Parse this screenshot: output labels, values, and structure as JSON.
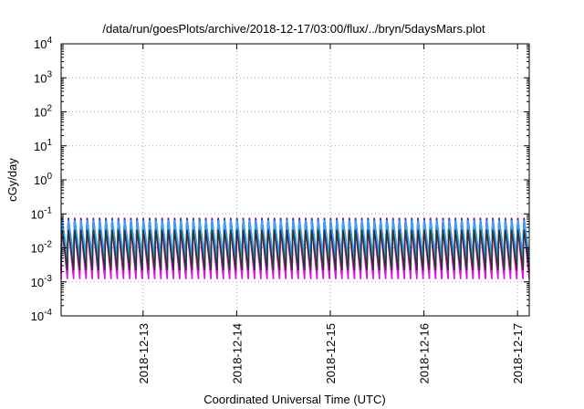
{
  "chart_data": {
    "type": "line",
    "title": "/data/run/goesPlots/archive/2018-12-17/03:00/flux/../bryn/5daysMars.plot",
    "xlabel": "Coordinated Universal Time (UTC)",
    "ylabel": "cGy/day",
    "yscale": "log",
    "ylim": [
      0.0001,
      10000
    ],
    "xlim": [
      "2018-12-12T03:00",
      "2018-12-17T03:00"
    ],
    "grid": true,
    "x_ticks": [
      "2018-12-13",
      "2018-12-14",
      "2018-12-15",
      "2018-12-16",
      "2018-12-17"
    ],
    "y_ticks": [
      {
        "base": "10",
        "exp": "-4"
      },
      {
        "base": "10",
        "exp": "-3"
      },
      {
        "base": "10",
        "exp": "-2"
      },
      {
        "base": "10",
        "exp": "-1"
      },
      {
        "base": "10",
        "exp": "0"
      },
      {
        "base": "10",
        "exp": "1"
      },
      {
        "base": "10",
        "exp": "2"
      },
      {
        "base": "10",
        "exp": "3"
      },
      {
        "base": "10",
        "exp": "4"
      }
    ],
    "cycle": {
      "period_hours": 1.6,
      "start": "2018-12-12T03:00",
      "note_shape": "sawtooth: sharp rise to peak then decay to minimum"
    },
    "series": [
      {
        "color": "#d81b1b",
        "peak": 0.095,
        "min": 0.0018
      },
      {
        "color": "#1a7a1a",
        "peak": 0.07,
        "min": 0.0028
      },
      {
        "color": "#2929d6",
        "peak": 0.085,
        "min": 0.0045
      },
      {
        "color": "#e010e0",
        "peak": 0.045,
        "min": 0.0012
      },
      {
        "color": "#19b7b7",
        "peak": 0.055,
        "min": 0.0035
      },
      {
        "color": "#3aa0ff",
        "peak": 0.075,
        "min": 0.006
      },
      {
        "color": "#333333",
        "peak": 0.04,
        "min": 0.0022
      }
    ]
  }
}
